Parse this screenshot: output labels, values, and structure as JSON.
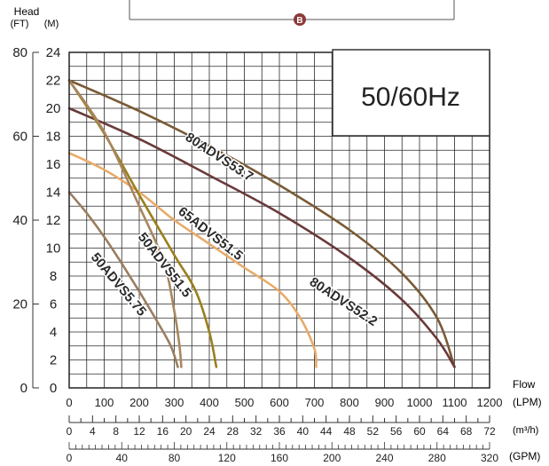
{
  "chart_data": {
    "type": "line",
    "frequency_label": "50/60Hz",
    "marker_label": "B",
    "y_axis": {
      "title": "Head",
      "unit_ft": "(FT)",
      "unit_m": "(M)",
      "meters": {
        "range": [
          0,
          24
        ],
        "ticks": [
          0,
          2,
          4,
          6,
          8,
          10,
          12,
          14,
          16,
          18,
          20,
          22,
          24
        ]
      },
      "feet": {
        "range": [
          0,
          80
        ],
        "ticks": [
          0,
          20,
          40,
          60,
          80
        ]
      }
    },
    "x_axis": {
      "title": "Flow",
      "lpm": {
        "unit": "(LPM)",
        "range": [
          0,
          1200
        ],
        "ticks": [
          0,
          100,
          200,
          300,
          400,
          500,
          600,
          700,
          800,
          900,
          1000,
          1100,
          1200
        ]
      },
      "m3h": {
        "unit": "(m³/h)",
        "range": [
          0,
          72
        ],
        "ticks": [
          0,
          4,
          8,
          12,
          16,
          20,
          24,
          28,
          32,
          36,
          40,
          44,
          48,
          52,
          56,
          60,
          64,
          68,
          72
        ]
      },
      "gpm": {
        "unit": "(GPM)",
        "range": [
          0,
          320
        ],
        "ticks": [
          0,
          40,
          80,
          120,
          160,
          200,
          240,
          280,
          320
        ]
      }
    },
    "grid": true,
    "series": [
      {
        "name": "80ADVS53.7",
        "color": "#7a5a35",
        "points": [
          [
            0,
            22
          ],
          [
            200,
            19.8
          ],
          [
            400,
            17.3
          ],
          [
            600,
            14.5
          ],
          [
            800,
            11.3
          ],
          [
            950,
            8.2
          ],
          [
            1050,
            5
          ],
          [
            1100,
            1.5
          ]
        ]
      },
      {
        "name": "80ADVS52.2",
        "color": "#6a3a3a",
        "points": [
          [
            0,
            20
          ],
          [
            200,
            17.8
          ],
          [
            400,
            15.2
          ],
          [
            600,
            12.5
          ],
          [
            800,
            9.3
          ],
          [
            950,
            6.3
          ],
          [
            1050,
            3.5
          ],
          [
            1100,
            1.5
          ]
        ]
      },
      {
        "name": "65ADVS51.5",
        "color": "#e8ab6a",
        "points": [
          [
            0,
            16.8
          ],
          [
            100,
            15.6
          ],
          [
            200,
            14
          ],
          [
            300,
            12
          ],
          [
            400,
            10.3
          ],
          [
            500,
            8.6
          ],
          [
            600,
            6.9
          ],
          [
            660,
            5
          ],
          [
            700,
            2.8
          ],
          [
            705,
            1.5
          ]
        ]
      },
      {
        "name": "50ADVS51.5",
        "color": "#9a7f1c",
        "points": [
          [
            0,
            22
          ],
          [
            100,
            18.2
          ],
          [
            200,
            13.8
          ],
          [
            300,
            9.5
          ],
          [
            360,
            7
          ],
          [
            400,
            4
          ],
          [
            420,
            1.5
          ]
        ]
      },
      {
        "name": "50ADVS5.75",
        "color": "#a88660",
        "points": [
          [
            0,
            22
          ],
          [
            100,
            18.3
          ],
          [
            200,
            13
          ],
          [
            270,
            9
          ],
          [
            300,
            5.5
          ],
          [
            315,
            3
          ],
          [
            320,
            1.5
          ]
        ]
      },
      {
        "name": "",
        "color": "#9b7e60",
        "points": [
          [
            0,
            14
          ],
          [
            50,
            12.5
          ],
          [
            100,
            10.8
          ],
          [
            150,
            8.9
          ],
          [
            200,
            6.9
          ],
          [
            250,
            4.8
          ],
          [
            290,
            3
          ],
          [
            310,
            1.5
          ]
        ]
      }
    ]
  }
}
